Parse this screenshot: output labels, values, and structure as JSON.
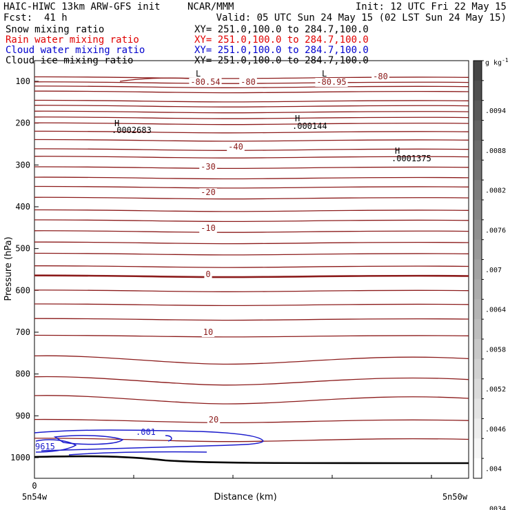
{
  "header": {
    "title_left": "HAIC-HIWC 13km ARW-GFS init",
    "org": "NCAR/MMM",
    "init": "Init: 12 UTC Fri 22 May 15",
    "fcst_label": "Fcst:",
    "fcst_value": "41 h",
    "valid": "Valid: 05 UTC Sun 24 May 15 (02 LST Sun 24 May 15)"
  },
  "fields": [
    {
      "name": "Snow mixing ratio",
      "xy": "XY= 251.0,100.0 to 284.7,100.0",
      "color": "#000000"
    },
    {
      "name": "Rain water mixing ratio",
      "xy": "XY= 251.0,100.0 to 284.7,100.0",
      "color": "#e00000"
    },
    {
      "name": "Cloud water mixing ratio",
      "xy": "XY= 251.0,100.0 to 284.7,100.0",
      "color": "#0000cc"
    },
    {
      "name": "Cloud ice mixing ratio",
      "xy": "XY= 251.0,100.0 to 284.7,100.0",
      "color": "#000000"
    }
  ],
  "chart_data": {
    "type": "contour",
    "ylabel": "Pressure (hPa)",
    "xlabel": "Distance (km)",
    "x_start_tick": "0",
    "x_left_label": "5n54w",
    "x_right_label": "5n50w",
    "y_ticks": [
      100,
      200,
      300,
      400,
      500,
      600,
      700,
      800,
      900,
      1000
    ],
    "ylim": [
      1050,
      25
    ],
    "temperature_contours": {
      "color": "#8b1a1a",
      "levels": [
        -80,
        -40,
        -30,
        -20,
        -10,
        0,
        10,
        20
      ],
      "labels": [
        "-80.54",
        "-80",
        "-80.95",
        "-80",
        "-40",
        "-30",
        "-20",
        "-10",
        "0",
        "10",
        "20"
      ]
    },
    "cloud_water_labels": [
      ".001",
      "9615"
    ],
    "extrema": [
      {
        "type": "L",
        "value": ""
      },
      {
        "type": "L",
        "value": ""
      },
      {
        "type": "H",
        "value": ".0002683"
      },
      {
        "type": "H",
        "value": ".000144"
      },
      {
        "type": "H",
        "value": ".0001375"
      }
    ],
    "colorbar": {
      "unit": "g kg",
      "unit_exp": "-1",
      "labels": [
        ".0094",
        ".0088",
        ".0082",
        ".0076",
        ".007",
        ".0064",
        ".0058",
        ".0052",
        ".0046",
        ".004",
        ".0034"
      ]
    }
  }
}
